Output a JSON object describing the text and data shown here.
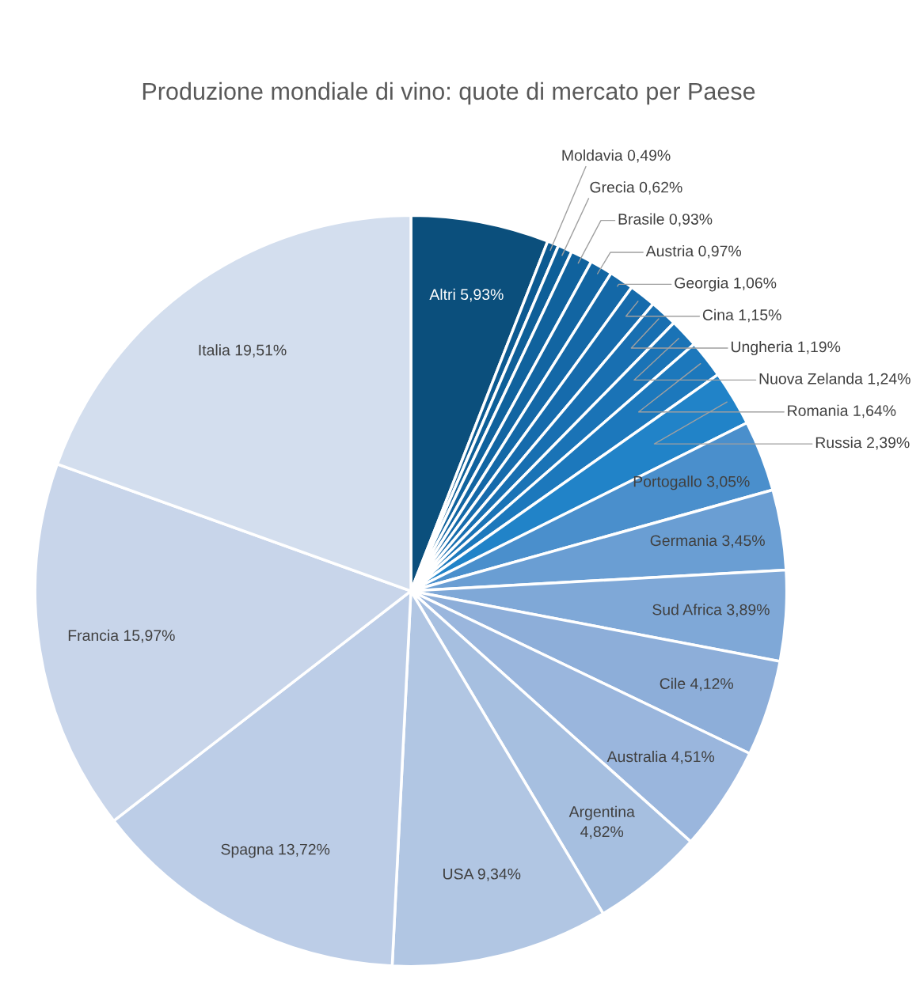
{
  "chart_data": {
    "type": "pie",
    "title": "Produzione mondiale di vino: quote di mercato per Paese",
    "categories": [
      "Altri",
      "Moldavia",
      "Grecia",
      "Brasile",
      "Austria",
      "Georgia",
      "Cina",
      "Ungheria",
      "Nuova Zelanda",
      "Romania",
      "Russia",
      "Portogallo",
      "Germania",
      "Sud Africa",
      "Cile",
      "Australia",
      "Argentina",
      "USA",
      "Spagna",
      "Francia",
      "Italia"
    ],
    "values": [
      5.93,
      0.49,
      0.62,
      0.93,
      0.97,
      1.06,
      1.15,
      1.19,
      1.24,
      1.64,
      2.39,
      3.05,
      3.45,
      3.89,
      4.12,
      4.51,
      4.82,
      9.34,
      13.72,
      15.97,
      19.51
    ],
    "value_labels": [
      "5,93%",
      "0,49%",
      "0,62%",
      "0,93%",
      "0,97%",
      "1,06%",
      "1,15%",
      "1,19%",
      "1,24%",
      "1,64%",
      "2,39%",
      "3,05%",
      "3,45%",
      "3,89%",
      "4,12%",
      "4,51%",
      "4,82%",
      "9,34%",
      "13,72%",
      "15,97%",
      "19,51%"
    ],
    "colors": [
      "#0b4f7c",
      "#0c5a91",
      "#0e5f98",
      "#10629d",
      "#1265a2",
      "#1468a7",
      "#166bac",
      "#186fb1",
      "#1a73b6",
      "#1c78bc",
      "#2183c8",
      "#4a8fcc",
      "#6a9ed3",
      "#7fa8d7",
      "#8daed9",
      "#9ab6dd",
      "#a6bfe0",
      "#b1c6e3",
      "#bccde7",
      "#c8d5ea",
      "#d3deee"
    ],
    "legend": false
  }
}
